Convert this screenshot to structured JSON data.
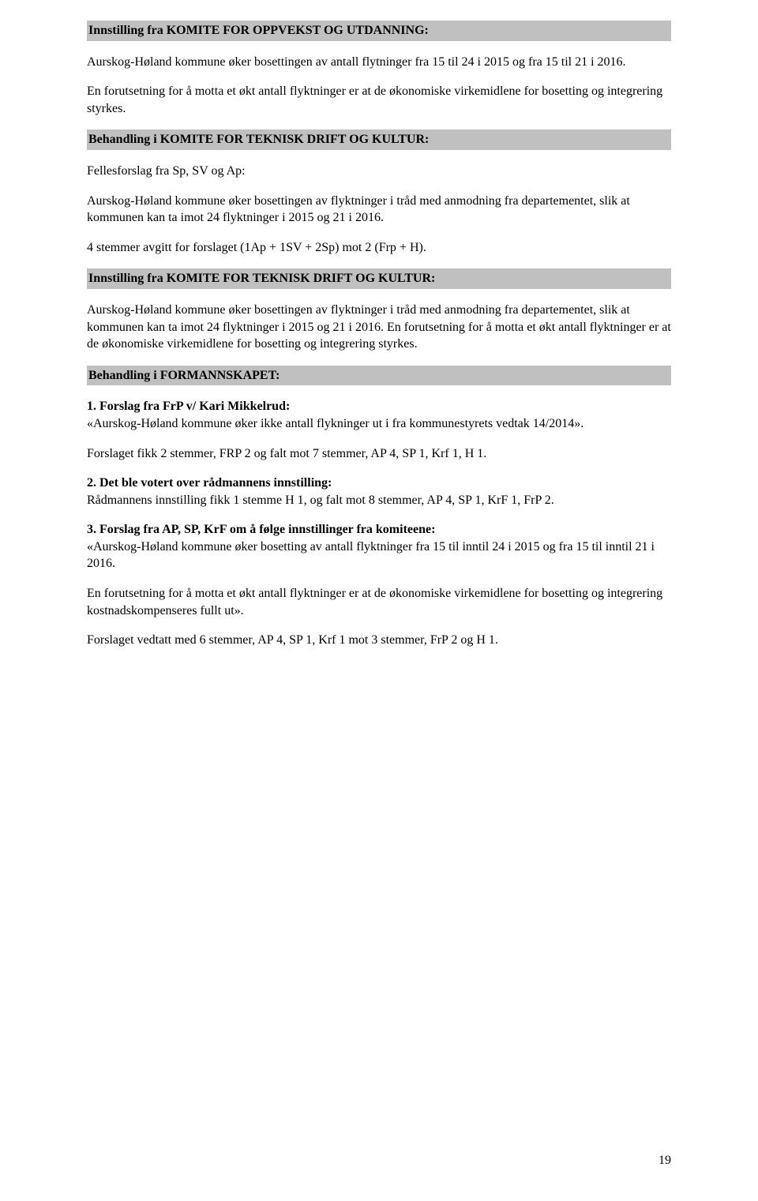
{
  "h1": "Innstilling fra KOMITE FOR OPPVEKST OG UTDANNING:",
  "p1": "Aurskog-Høland kommune øker bosettingen av antall flytninger fra 15 til 24 i 2015 og fra 15 til 21 i 2016.",
  "p2": "En forutsetning for å motta et økt antall flyktninger er at de økonomiske virkemidlene for bosetting og integrering styrkes.",
  "h2": "Behandling i KOMITE FOR TEKNISK DRIFT OG KULTUR:",
  "p3": "Fellesforslag fra Sp, SV og Ap:",
  "p4": "Aurskog-Høland kommune øker bosettingen av flyktninger i tråd med anmodning fra departementet, slik at kommunen kan ta imot 24 flyktninger i 2015 og 21 i 2016.",
  "p5": "4 stemmer avgitt for forslaget (1Ap + 1SV + 2Sp) mot 2 (Frp + H).",
  "h3": "Innstilling fra KOMITE FOR TEKNISK DRIFT OG KULTUR:",
  "p6": "Aurskog-Høland kommune øker bosettingen av flyktninger i tråd med anmodning fra departementet, slik at kommunen kan ta imot 24 flyktninger i 2015 og 21 i 2016. En forutsetning for å motta et økt antall flyktninger er at de økonomiske virkemidlene for bosetting og integrering styrkes.",
  "h4": "Behandling i FORMANNSKAPET:",
  "b1_label": "1. Forslag fra FrP v/ Kari Mikkelrud:",
  "b1_text": "«Aurskog-Høland kommune øker ikke antall flykninger ut i fra kommunestyrets vedtak 14/2014».",
  "p7": "Forslaget fikk 2 stemmer, FRP 2 og falt mot 7 stemmer, AP 4, SP 1, Krf 1, H 1.",
  "b2_label": "2. Det ble votert over rådmannens innstilling:",
  "b2_text": "Rådmannens innstilling fikk 1 stemme H 1, og falt mot 8 stemmer, AP 4, SP 1, KrF 1, FrP 2.",
  "b3_label": "3. Forslag fra AP, SP, KrF om å følge innstillinger fra komiteene:",
  "b3_text": "«Aurskog-Høland kommune øker bosetting av antall flyktninger fra 15 til inntil 24 i 2015 og fra 15 til inntil 21 i 2016.",
  "p8": "En forutsetning for å motta et økt antall flyktninger er at de økonomiske virkemidlene for bosetting og integrering kostnadskompenseres fullt ut».",
  "p9": "Forslaget vedtatt med 6 stemmer, AP 4, SP 1, Krf 1 mot 3 stemmer, FrP 2 og H 1.",
  "page_number": "19"
}
